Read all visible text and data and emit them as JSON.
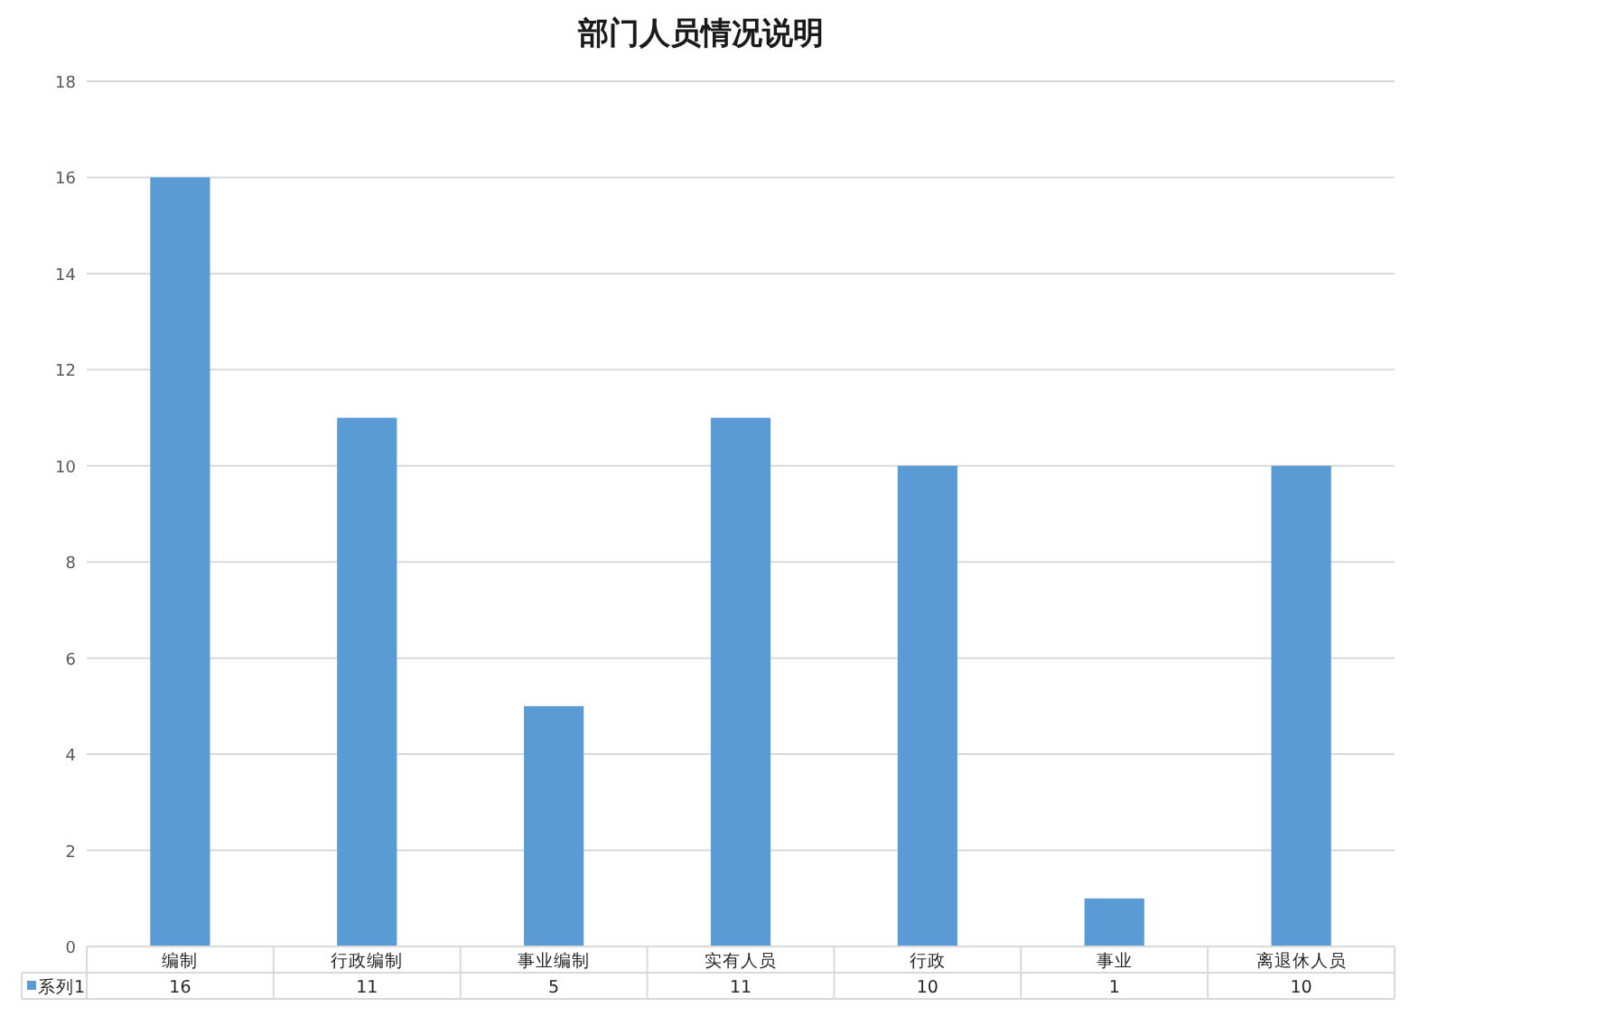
{
  "chart_data": {
    "type": "bar",
    "title": "部门人员情况说明",
    "categories": [
      "编制",
      "行政编制",
      "事业编制",
      "实有人员",
      "行政",
      "事业",
      "离退休人员"
    ],
    "series": [
      {
        "name": "系列1",
        "color": "#5b9bd5",
        "values": [
          16,
          11,
          5,
          11,
          10,
          1,
          10
        ]
      }
    ],
    "ylim": [
      0,
      18
    ],
    "yticks": [
      0,
      2,
      4,
      6,
      8,
      10,
      12,
      14,
      16,
      18
    ],
    "grid": "y",
    "data_labels": true,
    "legend": "bottom"
  }
}
